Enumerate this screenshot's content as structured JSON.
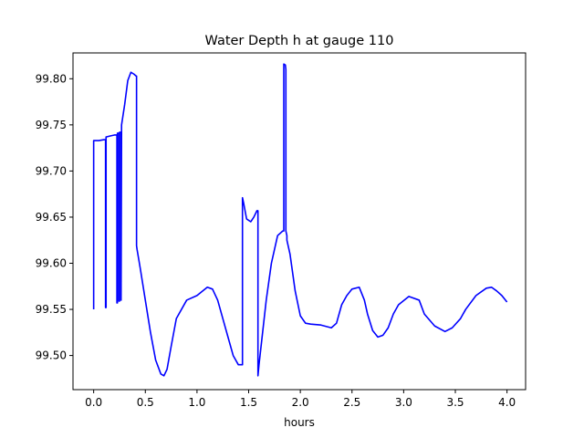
{
  "chart_data": {
    "type": "line",
    "title": "Water Depth h at gauge 110",
    "xlabel": "hours",
    "ylabel": "",
    "xlim": [
      -0.2,
      4.18
    ],
    "ylim": [
      99.463,
      99.828
    ],
    "xticks": [
      0.0,
      0.5,
      1.0,
      1.5,
      2.0,
      2.5,
      3.0,
      3.5,
      4.0
    ],
    "xtick_labels": [
      "0.0",
      "0.5",
      "1.0",
      "1.5",
      "2.0",
      "2.5",
      "3.0",
      "3.5",
      "4.0"
    ],
    "yticks": [
      99.5,
      99.55,
      99.6,
      99.65,
      99.7,
      99.75,
      99.8
    ],
    "ytick_labels": [
      "99.50",
      "99.55",
      "99.60",
      "99.65",
      "99.70",
      "99.75",
      "99.80"
    ],
    "grid": false,
    "legend": "none",
    "series": [
      {
        "color": "#0000ff",
        "x": [
          0.0,
          0.0,
          0.05,
          0.1,
          0.115,
          0.115,
          0.12,
          0.12,
          0.125,
          0.16,
          0.2,
          0.225,
          0.225,
          0.23,
          0.23,
          0.245,
          0.245,
          0.25,
          0.25,
          0.265,
          0.265,
          0.27,
          0.3,
          0.33,
          0.36,
          0.39,
          0.41,
          0.415,
          0.415,
          0.42,
          0.45,
          0.5,
          0.55,
          0.6,
          0.65,
          0.68,
          0.71,
          0.75,
          0.8,
          0.9,
          1.0,
          1.1,
          1.15,
          1.2,
          1.25,
          1.3,
          1.35,
          1.4,
          1.43,
          1.44,
          1.44,
          1.45,
          1.48,
          1.52,
          1.55,
          1.58,
          1.59,
          1.59,
          1.6,
          1.63,
          1.67,
          1.72,
          1.78,
          1.83,
          1.84,
          1.84,
          1.855,
          1.86,
          1.86,
          1.87,
          1.87,
          1.9,
          1.95,
          2.0,
          2.05,
          2.1,
          2.2,
          2.3,
          2.35,
          2.4,
          2.45,
          2.5,
          2.57,
          2.62,
          2.65,
          2.7,
          2.75,
          2.8,
          2.85,
          2.9,
          2.95,
          3.05,
          3.15,
          3.2,
          3.3,
          3.4,
          3.47,
          3.55,
          3.6,
          3.7,
          3.8,
          3.85,
          3.9,
          3.95,
          4.0
        ],
        "values": [
          99.55,
          99.733,
          99.733,
          99.734,
          99.734,
          99.552,
          99.552,
          99.737,
          99.737,
          99.738,
          99.739,
          99.739,
          99.557,
          99.557,
          99.741,
          99.741,
          99.559,
          99.559,
          99.742,
          99.742,
          99.56,
          99.75,
          99.772,
          99.798,
          99.807,
          99.805,
          99.803,
          99.803,
          99.619,
          99.615,
          99.595,
          99.56,
          99.525,
          99.495,
          99.48,
          99.478,
          99.485,
          99.51,
          99.54,
          99.56,
          99.565,
          99.574,
          99.572,
          99.56,
          99.54,
          99.52,
          99.5,
          99.49,
          99.49,
          99.49,
          99.671,
          99.666,
          99.648,
          99.645,
          99.65,
          99.657,
          99.657,
          99.478,
          99.49,
          99.52,
          99.56,
          99.6,
          99.63,
          99.635,
          99.635,
          99.816,
          99.815,
          99.81,
          99.635,
          99.63,
          99.625,
          99.61,
          99.57,
          99.543,
          99.535,
          99.534,
          99.533,
          99.53,
          99.535,
          99.555,
          99.565,
          99.572,
          99.574,
          99.56,
          99.545,
          99.527,
          99.52,
          99.522,
          99.53,
          99.545,
          99.555,
          99.564,
          99.56,
          99.545,
          99.532,
          99.526,
          99.53,
          99.54,
          99.55,
          99.565,
          99.573,
          99.574,
          99.57,
          99.565,
          99.558
        ]
      }
    ]
  }
}
